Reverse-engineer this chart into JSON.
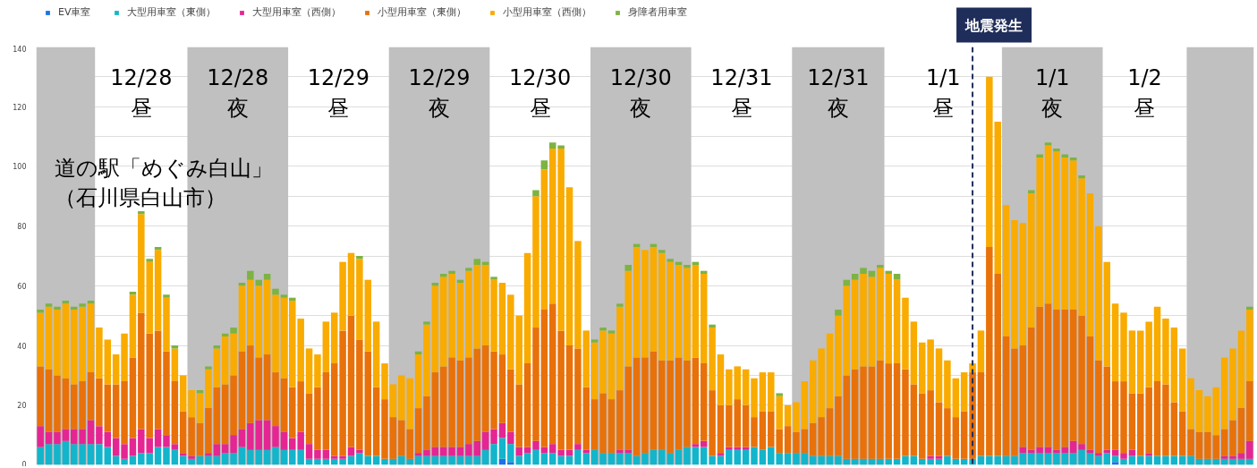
{
  "chart_data": {
    "type": "bar",
    "stacked": true,
    "categories": [
      null,
      null,
      null,
      null,
      null,
      null,
      null,
      null,
      null,
      null,
      null,
      null,
      null,
      null,
      null,
      null,
      null,
      null,
      null,
      null,
      null,
      null,
      null,
      null,
      null,
      null,
      null,
      null,
      null,
      null,
      null,
      null,
      null,
      null,
      null,
      null,
      null,
      null,
      null,
      null,
      null,
      null,
      null,
      null,
      null,
      null,
      null,
      null,
      null,
      null,
      null,
      null,
      null,
      null,
      null,
      null,
      null,
      null,
      null,
      null,
      null,
      null,
      null,
      null,
      null,
      null,
      null,
      null,
      null,
      null,
      null,
      null,
      null,
      null,
      null,
      null,
      null,
      null,
      null,
      null,
      null,
      null,
      null,
      null,
      null,
      null,
      null,
      null,
      null,
      null,
      null,
      null,
      null,
      null,
      null,
      null,
      null,
      null,
      null,
      null,
      null,
      null,
      null,
      null,
      null,
      null,
      null,
      null,
      null,
      null,
      null,
      null,
      null,
      null,
      null,
      null,
      null,
      null,
      null,
      null,
      null,
      null,
      null,
      null,
      null,
      null,
      null,
      null,
      null,
      null,
      null,
      null,
      null,
      null,
      null,
      null,
      null,
      null,
      null,
      null,
      null,
      null,
      null,
      null,
      null
    ],
    "series": [
      {
        "name": "EV車室",
        "color": "#1a73e8",
        "values": [
          0,
          0,
          0,
          0,
          0,
          0,
          0,
          0,
          0,
          0,
          0,
          0,
          0,
          0,
          0,
          0,
          0,
          0,
          0,
          0,
          0,
          0,
          0,
          0,
          0,
          0,
          0,
          0,
          0,
          0,
          0,
          0,
          0,
          0,
          0,
          0,
          0,
          0,
          0,
          0,
          0,
          0,
          0,
          0,
          0,
          0,
          0,
          0,
          0,
          0,
          0,
          0,
          0,
          0,
          0,
          2,
          1,
          0,
          0,
          0,
          0,
          0,
          0,
          0,
          0,
          0,
          0,
          0,
          0,
          0,
          0,
          0,
          0,
          0,
          0,
          0,
          0,
          0,
          0,
          0,
          0,
          0,
          0,
          0,
          0,
          0,
          0,
          0,
          0,
          0,
          0,
          0,
          0,
          0,
          0,
          0,
          0,
          0,
          0,
          0,
          0,
          0,
          0,
          0,
          0,
          0,
          0,
          0,
          0,
          0,
          0,
          0,
          0,
          0,
          0,
          0,
          0,
          0,
          0,
          0,
          0,
          0,
          0,
          0,
          0,
          0,
          0,
          0,
          1,
          0,
          0,
          0,
          0,
          0,
          0,
          0,
          0,
          0,
          0,
          0,
          0,
          0,
          0,
          0,
          0
        ]
      },
      {
        "name": "大型用車室（東側）",
        "color": "#12b5cb",
        "values": [
          6,
          7,
          7,
          8,
          7,
          7,
          7,
          7,
          6,
          3,
          2,
          3,
          4,
          4,
          6,
          6,
          5,
          3,
          2,
          3,
          3,
          3,
          4,
          4,
          6,
          5,
          5,
          5,
          6,
          5,
          5,
          5,
          2,
          2,
          2,
          2,
          2,
          3,
          4,
          3,
          3,
          2,
          2,
          3,
          2,
          3,
          3,
          3,
          3,
          3,
          3,
          3,
          3,
          5,
          7,
          7,
          6,
          3,
          4,
          5,
          4,
          4,
          3,
          3,
          5,
          4,
          5,
          4,
          4,
          4,
          4,
          3,
          4,
          5,
          5,
          4,
          5,
          6,
          6,
          6,
          3,
          3,
          5,
          5,
          5,
          6,
          5,
          6,
          4,
          4,
          4,
          4,
          3,
          3,
          3,
          3,
          2,
          2,
          2,
          2,
          2,
          2,
          2,
          3,
          3,
          2,
          2,
          2,
          3,
          2,
          2,
          2,
          3,
          3,
          3,
          3,
          3,
          4,
          4,
          4,
          4,
          4,
          4,
          4,
          5,
          4,
          3,
          4,
          2,
          2,
          3,
          3,
          3,
          3,
          3,
          3,
          3,
          3,
          2,
          2,
          2,
          2,
          2,
          2,
          2
        ]
      },
      {
        "name": "大型用車室（西側）",
        "color": "#e52592",
        "values": [
          7,
          4,
          4,
          4,
          5,
          5,
          8,
          6,
          5,
          6,
          5,
          6,
          8,
          5,
          6,
          4,
          2,
          1,
          1,
          0,
          1,
          4,
          3,
          6,
          6,
          9,
          10,
          10,
          7,
          6,
          4,
          6,
          5,
          3,
          3,
          1,
          1,
          3,
          1,
          0,
          0,
          0,
          0,
          0,
          0,
          1,
          2,
          3,
          3,
          3,
          3,
          4,
          5,
          6,
          5,
          5,
          4,
          3,
          2,
          3,
          2,
          3,
          2,
          2,
          2,
          1,
          0,
          0,
          0,
          1,
          1,
          0,
          0,
          0,
          0,
          0,
          0,
          0,
          1,
          2,
          0,
          1,
          1,
          1,
          1,
          0,
          0,
          0,
          0,
          0,
          0,
          0,
          0,
          0,
          0,
          0,
          0,
          0,
          0,
          0,
          0,
          0,
          0,
          0,
          0,
          0,
          1,
          1,
          0,
          0,
          0,
          0,
          0,
          0,
          0,
          0,
          0,
          2,
          1,
          2,
          2,
          1,
          2,
          4,
          2,
          1,
          1,
          1,
          2,
          2,
          2,
          0,
          1,
          0,
          0,
          0,
          0,
          0,
          0,
          0,
          0,
          1,
          1,
          2,
          6
        ]
      },
      {
        "name": "小型用車室（東側）",
        "color": "#e8710a",
        "values": [
          20,
          21,
          19,
          17,
          15,
          16,
          16,
          16,
          16,
          18,
          21,
          27,
          39,
          35,
          33,
          28,
          21,
          14,
          13,
          11,
          15,
          19,
          20,
          20,
          26,
          26,
          21,
          22,
          18,
          18,
          17,
          17,
          17,
          21,
          26,
          31,
          42,
          44,
          37,
          35,
          23,
          20,
          14,
          12,
          10,
          15,
          18,
          25,
          27,
          30,
          29,
          29,
          31,
          29,
          26,
          23,
          21,
          21,
          28,
          38,
          46,
          47,
          40,
          35,
          32,
          21,
          17,
          20,
          18,
          20,
          28,
          33,
          32,
          33,
          30,
          31,
          31,
          29,
          29,
          26,
          22,
          16,
          14,
          16,
          14,
          10,
          13,
          12,
          8,
          9,
          7,
          8,
          11,
          13,
          16,
          20,
          28,
          30,
          31,
          31,
          33,
          32,
          32,
          29,
          24,
          22,
          22,
          18,
          16,
          14,
          16,
          29,
          28,
          70,
          61,
          40,
          36,
          34,
          41,
          47,
          48,
          47,
          46,
          44,
          43,
          38,
          31,
          28,
          23,
          24,
          19,
          21,
          22,
          25,
          24,
          18,
          15,
          9,
          9,
          9,
          8,
          9,
          12,
          15,
          20
        ]
      },
      {
        "name": "小型用車室（西側）",
        "color": "#f9ab00",
        "values": [
          18,
          21,
          22,
          25,
          25,
          25,
          23,
          17,
          15,
          10,
          16,
          21,
          33,
          24,
          27,
          18,
          11,
          12,
          9,
          10,
          13,
          13,
          16,
          14,
          22,
          22,
          24,
          25,
          26,
          27,
          29,
          21,
          15,
          11,
          17,
          17,
          23,
          21,
          27,
          24,
          22,
          12,
          11,
          15,
          17,
          18,
          24,
          29,
          30,
          28,
          26,
          29,
          28,
          27,
          24,
          24,
          25,
          23,
          37,
          44,
          47,
          52,
          61,
          53,
          36,
          19,
          19,
          21,
          22,
          28,
          32,
          37,
          36,
          35,
          36,
          33,
          31,
          31,
          31,
          30,
          21,
          17,
          12,
          11,
          12,
          13,
          13,
          13,
          11,
          7,
          10,
          16,
          21,
          23,
          25,
          27,
          30,
          30,
          31,
          30,
          31,
          30,
          28,
          24,
          21,
          17,
          17,
          18,
          16,
          13,
          13,
          3,
          14,
          57,
          51,
          44,
          43,
          41,
          45,
          50,
          53,
          53,
          51,
          50,
          46,
          48,
          45,
          35,
          26,
          23,
          21,
          21,
          22,
          25,
          22,
          25,
          21,
          17,
          14,
          12,
          16,
          24,
          24,
          26,
          24
        ]
      },
      {
        "name": "身障者用車室",
        "color": "#7cb342",
        "values": [
          1,
          1,
          1,
          1,
          1,
          1,
          1,
          0,
          0,
          0,
          0,
          1,
          1,
          1,
          1,
          1,
          1,
          0,
          0,
          1,
          1,
          1,
          1,
          2,
          1,
          3,
          2,
          2,
          2,
          1,
          1,
          0,
          0,
          0,
          0,
          0,
          0,
          0,
          1,
          0,
          0,
          0,
          0,
          0,
          0,
          1,
          1,
          1,
          1,
          1,
          1,
          1,
          2,
          1,
          1,
          0,
          0,
          0,
          0,
          2,
          3,
          2,
          1,
          0,
          0,
          0,
          1,
          1,
          1,
          1,
          2,
          1,
          0,
          1,
          1,
          1,
          1,
          1,
          1,
          1,
          1,
          0,
          0,
          0,
          0,
          0,
          0,
          0,
          1,
          0,
          0,
          0,
          0,
          0,
          0,
          2,
          2,
          2,
          2,
          2,
          1,
          1,
          2,
          0,
          0,
          0,
          0,
          0,
          0,
          0,
          0,
          0,
          0,
          0,
          0,
          0,
          0,
          0,
          1,
          1,
          1,
          1,
          1,
          1,
          1,
          0,
          0,
          0,
          0,
          0,
          0,
          0,
          0,
          0,
          0,
          0,
          0,
          0,
          0,
          0,
          0,
          0,
          0,
          0,
          1
        ]
      }
    ],
    "ylim": [
      0,
      140
    ],
    "yticks": [
      0,
      {
        "value": 10,
        "label": null
      },
      20,
      {
        "value": 30,
        "label": null
      },
      40,
      {
        "value": 50,
        "label": null
      },
      60,
      {
        "value": 70,
        "label": null
      },
      80,
      {
        "value": 90,
        "label": null
      },
      100,
      {
        "value": 110,
        "label": null
      },
      120,
      {
        "value": 130,
        "label": null
      },
      140
    ],
    "grid": "y",
    "legend": "top left",
    "tick_labels": "y",
    "annotations": [
      "12/28\n昼",
      "12/28\n夜",
      "12/29\n昼",
      "12/29\n夜",
      "12/30\n昼",
      "12/30\n夜",
      "12/31\n昼",
      "12/31\n夜",
      "1/1\n昼",
      "1/1\n夜",
      "1/2\n昼",
      "地震発生",
      "道の駅「めぐみ白山」",
      "（石川県白山市）"
    ]
  }
}
